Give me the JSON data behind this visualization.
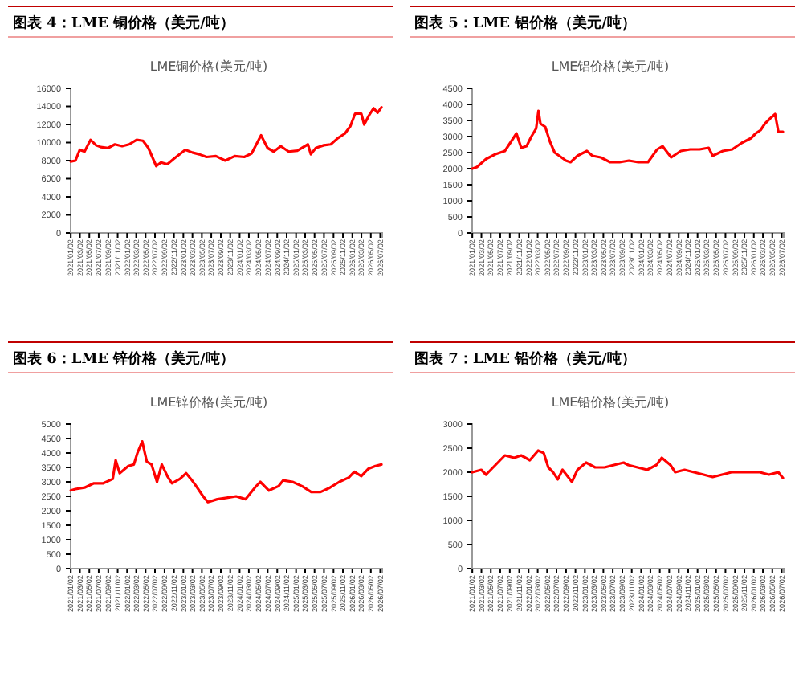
{
  "chart_data": [
    {
      "type": "line",
      "title": "图表 4：LME 铜价格（美元/吨）",
      "subtitle": "LME铜价格(美元/吨)",
      "ylim": [
        0,
        16000
      ],
      "yticks": [
        0,
        2000,
        4000,
        6000,
        8000,
        10000,
        12000,
        14000,
        16000
      ],
      "xlim": [
        "2021-01-01",
        "2026-07-15"
      ],
      "xticks": [
        {
          "value": "2021-01-02",
          "label": "2021/01/02"
        },
        {
          "value": "2021-03-02",
          "label": "2021/03/02"
        },
        {
          "value": "2021-05-02",
          "label": "2021/05/02"
        },
        {
          "value": "2021-07-02",
          "label": "2021/07/02"
        },
        {
          "value": "2021-09-02",
          "label": "2021/09/02"
        },
        {
          "value": "2021-11-02",
          "label": "2021/11/02"
        },
        {
          "value": "2022-01-02",
          "label": "2022/01/02"
        },
        {
          "value": "2022-03-02",
          "label": "2022/03/02"
        },
        {
          "value": "2022-05-02",
          "label": "2022/05/02"
        },
        {
          "value": "2022-07-02",
          "label": "2022/07/02"
        },
        {
          "value": "2022-09-02",
          "label": "2022/09/02"
        },
        {
          "value": "2022-11-02",
          "label": "2022/11/02"
        },
        {
          "value": "2023-01-02",
          "label": "2023/01/02"
        },
        {
          "value": "2023-03-02",
          "label": "2023/03/02"
        },
        {
          "value": "2023-05-02",
          "label": "2023/05/02"
        },
        {
          "value": "2023-07-02",
          "label": "2023/07/02"
        },
        {
          "value": "2023-09-02",
          "label": "2023/09/02"
        },
        {
          "value": "2023-11-02",
          "label": "2023/11/02"
        },
        {
          "value": "2024-01-02",
          "label": "2024/01/02"
        },
        {
          "value": "2024-03-02",
          "label": "2024/03/02"
        },
        {
          "value": "2024-05-02",
          "label": "2024/05/02"
        },
        {
          "value": "2024-07-02",
          "label": "2024/07/02"
        },
        {
          "value": "2024-09-02",
          "label": "2024/09/02"
        },
        {
          "value": "2024-11-02",
          "label": "2024/11/02"
        },
        {
          "value": "2025-01-02",
          "label": "2025/01/02"
        },
        {
          "value": "2025-03-02",
          "label": "2025/03/02"
        },
        {
          "value": "2025-05-02",
          "label": "2025/05/02"
        },
        {
          "value": "2025-07-02",
          "label": "2025/07/02"
        },
        {
          "value": "2025-09-02",
          "label": "2025/09/02"
        },
        {
          "value": "2025-11-02",
          "label": "2025/11/02"
        },
        {
          "value": "2026-01-02",
          "label": "2026/01/02"
        },
        {
          "value": "2026-03-02",
          "label": "2026/03/02"
        },
        {
          "value": "2026-05-02",
          "label": "2026/05/02"
        },
        {
          "value": "2026-07-02",
          "label": "2026/07/02"
        }
      ],
      "x": [
        "2021-01-02",
        "2021-02-01",
        "2021-03-01",
        "2021-04-01",
        "2021-05-10",
        "2021-06-15",
        "2021-07-15",
        "2021-09-01",
        "2021-10-15",
        "2021-12-01",
        "2022-01-15",
        "2022-03-05",
        "2022-04-15",
        "2022-05-20",
        "2022-07-10",
        "2022-08-10",
        "2022-09-20",
        "2022-11-01",
        "2023-01-15",
        "2023-03-01",
        "2023-04-15",
        "2023-06-01",
        "2023-08-01",
        "2023-10-01",
        "2023-12-01",
        "2024-02-01",
        "2024-03-20",
        "2024-05-20",
        "2024-07-01",
        "2024-08-10",
        "2024-09-25",
        "2024-11-15",
        "2025-01-10",
        "2025-03-20",
        "2025-04-08",
        "2025-05-10",
        "2025-07-01",
        "2025-08-15",
        "2025-10-01",
        "2025-11-15",
        "2025-12-20",
        "2026-01-20",
        "2026-03-01",
        "2026-03-20",
        "2026-04-20",
        "2026-05-20",
        "2026-06-15",
        "2026-07-10"
      ],
      "series": [
        {
          "color": "#ff0000",
          "values": [
            7900,
            8000,
            9200,
            9000,
            10300,
            9700,
            9500,
            9400,
            9800,
            9600,
            9800,
            10300,
            10200,
            9400,
            7400,
            7800,
            7600,
            8200,
            9200,
            8900,
            8700,
            8400,
            8500,
            8000,
            8500,
            8400,
            8800,
            10800,
            9400,
            9000,
            9600,
            9000,
            9100,
            9800,
            8700,
            9400,
            9700,
            9800,
            10500,
            11000,
            11800,
            13200,
            13200,
            12000,
            13000,
            13800,
            13300,
            13900
          ]
        }
      ]
    },
    {
      "type": "line",
      "title": "图表 5：LME 铝价格（美元/吨）",
      "subtitle": "LME铝价格(美元/吨)",
      "ylim": [
        0,
        4500
      ],
      "yticks": [
        0,
        500,
        1000,
        1500,
        2000,
        2500,
        3000,
        3500,
        4000,
        4500
      ],
      "xlim": [
        "2021-01-01",
        "2026-07-15"
      ],
      "xticks": [
        {
          "value": "2021-01-02",
          "label": "2021/01/02"
        },
        {
          "value": "2021-03-02",
          "label": "2021/03/02"
        },
        {
          "value": "2021-05-02",
          "label": "2021/05/02"
        },
        {
          "value": "2021-07-02",
          "label": "2021/07/02"
        },
        {
          "value": "2021-09-02",
          "label": "2021/09/02"
        },
        {
          "value": "2021-11-02",
          "label": "2021/11/02"
        },
        {
          "value": "2022-01-02",
          "label": "2022/01/02"
        },
        {
          "value": "2022-03-02",
          "label": "2022/03/02"
        },
        {
          "value": "2022-05-02",
          "label": "2022/05/02"
        },
        {
          "value": "2022-07-02",
          "label": "2022/07/02"
        },
        {
          "value": "2022-09-02",
          "label": "2022/09/02"
        },
        {
          "value": "2022-11-02",
          "label": "2022/11/02"
        },
        {
          "value": "2023-01-02",
          "label": "2023/01/02"
        },
        {
          "value": "2023-03-02",
          "label": "2023/03/02"
        },
        {
          "value": "2023-05-02",
          "label": "2023/05/02"
        },
        {
          "value": "2023-07-02",
          "label": "2023/07/02"
        },
        {
          "value": "2023-09-02",
          "label": "2023/09/02"
        },
        {
          "value": "2023-11-02",
          "label": "2023/11/02"
        },
        {
          "value": "2024-01-02",
          "label": "2024/01/02"
        },
        {
          "value": "2024-03-02",
          "label": "2024/03/02"
        },
        {
          "value": "2024-05-02",
          "label": "2024/05/02"
        },
        {
          "value": "2024-07-02",
          "label": "2024/07/02"
        },
        {
          "value": "2024-09-02",
          "label": "2024/09/02"
        },
        {
          "value": "2024-11-02",
          "label": "2024/11/02"
        },
        {
          "value": "2025-01-02",
          "label": "2025/01/02"
        },
        {
          "value": "2025-03-02",
          "label": "2025/03/02"
        },
        {
          "value": "2025-05-02",
          "label": "2025/05/02"
        },
        {
          "value": "2025-07-02",
          "label": "2025/07/02"
        },
        {
          "value": "2025-09-02",
          "label": "2025/09/02"
        },
        {
          "value": "2025-11-02",
          "label": "2025/11/02"
        },
        {
          "value": "2026-01-02",
          "label": "2026/01/02"
        },
        {
          "value": "2026-03-02",
          "label": "2026/03/02"
        },
        {
          "value": "2026-05-02",
          "label": "2026/05/02"
        },
        {
          "value": "2026-07-02",
          "label": "2026/07/02"
        }
      ],
      "x": [
        "2021-01-02",
        "2021-02-01",
        "2021-04-01",
        "2021-06-01",
        "2021-08-01",
        "2021-09-25",
        "2021-10-15",
        "2021-11-15",
        "2021-12-20",
        "2022-01-20",
        "2022-02-20",
        "2022-03-07",
        "2022-03-20",
        "2022-04-20",
        "2022-05-20",
        "2022-06-20",
        "2022-07-20",
        "2022-09-01",
        "2022-10-01",
        "2022-11-15",
        "2023-01-15",
        "2023-02-20",
        "2023-04-15",
        "2023-06-15",
        "2023-08-15",
        "2023-10-15",
        "2023-12-15",
        "2024-02-15",
        "2024-04-15",
        "2024-05-20",
        "2024-07-15",
        "2024-09-15",
        "2024-11-15",
        "2025-01-15",
        "2025-03-15",
        "2025-04-10",
        "2025-06-15",
        "2025-08-15",
        "2025-10-15",
        "2025-12-15",
        "2026-01-15",
        "2026-02-15",
        "2026-03-15",
        "2026-04-15",
        "2026-05-20",
        "2026-06-10",
        "2026-07-10"
      ],
      "series": [
        {
          "color": "#ff0000",
          "values": [
            2000,
            2050,
            2300,
            2450,
            2550,
            2950,
            3100,
            2650,
            2700,
            3000,
            3250,
            3800,
            3400,
            3300,
            2850,
            2500,
            2400,
            2250,
            2200,
            2400,
            2550,
            2400,
            2350,
            2200,
            2200,
            2250,
            2200,
            2200,
            2600,
            2700,
            2350,
            2550,
            2600,
            2600,
            2650,
            2400,
            2550,
            2600,
            2800,
            2950,
            3100,
            3200,
            3400,
            3550,
            3700,
            3150,
            3150
          ]
        }
      ]
    },
    {
      "type": "line",
      "title": "图表 6：LME 锌价格（美元/吨）",
      "subtitle": "LME锌价格(美元/吨)",
      "ylim": [
        0,
        5000
      ],
      "yticks": [
        0,
        500,
        1000,
        1500,
        2000,
        2500,
        3000,
        3500,
        4000,
        4500,
        5000
      ],
      "xlim": [
        "2021-01-01",
        "2026-07-15"
      ],
      "xticks": [
        {
          "value": "2021-01-02",
          "label": "2021/01/02"
        },
        {
          "value": "2021-03-02",
          "label": "2021/03/02"
        },
        {
          "value": "2021-05-02",
          "label": "2021/05/02"
        },
        {
          "value": "2021-07-02",
          "label": "2021/07/02"
        },
        {
          "value": "2021-09-02",
          "label": "2021/09/02"
        },
        {
          "value": "2021-11-02",
          "label": "2021/11/02"
        },
        {
          "value": "2022-01-02",
          "label": "2022/01/02"
        },
        {
          "value": "2022-03-02",
          "label": "2022/03/02"
        },
        {
          "value": "2022-05-02",
          "label": "2022/05/02"
        },
        {
          "value": "2022-07-02",
          "label": "2022/07/02"
        },
        {
          "value": "2022-09-02",
          "label": "2022/09/02"
        },
        {
          "value": "2022-11-02",
          "label": "2022/11/02"
        },
        {
          "value": "2023-01-02",
          "label": "2023/01/02"
        },
        {
          "value": "2023-03-02",
          "label": "2023/03/02"
        },
        {
          "value": "2023-05-02",
          "label": "2023/05/02"
        },
        {
          "value": "2023-07-02",
          "label": "2023/07/02"
        },
        {
          "value": "2023-09-02",
          "label": "2023/09/02"
        },
        {
          "value": "2023-11-02",
          "label": "2023/11/02"
        },
        {
          "value": "2024-01-02",
          "label": "2024/01/02"
        },
        {
          "value": "2024-03-02",
          "label": "2024/03/02"
        },
        {
          "value": "2024-05-02",
          "label": "2024/05/02"
        },
        {
          "value": "2024-07-02",
          "label": "2024/07/02"
        },
        {
          "value": "2024-09-02",
          "label": "2024/09/02"
        },
        {
          "value": "2024-11-02",
          "label": "2024/11/02"
        },
        {
          "value": "2025-01-02",
          "label": "2025/01/02"
        },
        {
          "value": "2025-03-02",
          "label": "2025/03/02"
        },
        {
          "value": "2025-05-02",
          "label": "2025/05/02"
        },
        {
          "value": "2025-07-02",
          "label": "2025/07/02"
        },
        {
          "value": "2025-09-02",
          "label": "2025/09/02"
        },
        {
          "value": "2025-11-02",
          "label": "2025/11/02"
        },
        {
          "value": "2026-01-02",
          "label": "2026/01/02"
        },
        {
          "value": "2026-03-02",
          "label": "2026/03/02"
        },
        {
          "value": "2026-05-02",
          "label": "2026/05/02"
        },
        {
          "value": "2026-07-02",
          "label": "2026/07/02"
        }
      ],
      "x": [
        "2021-01-02",
        "2021-02-01",
        "2021-04-01",
        "2021-06-01",
        "2021-08-01",
        "2021-10-01",
        "2021-10-20",
        "2021-11-15",
        "2022-01-10",
        "2022-02-15",
        "2022-03-10",
        "2022-04-10",
        "2022-05-10",
        "2022-06-10",
        "2022-07-15",
        "2022-08-15",
        "2022-09-20",
        "2022-10-20",
        "2022-12-10",
        "2023-01-20",
        "2023-02-20",
        "2023-03-20",
        "2023-05-10",
        "2023-06-10",
        "2023-08-10",
        "2023-10-10",
        "2023-12-10",
        "2024-02-10",
        "2024-04-10",
        "2024-05-15",
        "2024-07-10",
        "2024-09-10",
        "2024-10-10",
        "2024-12-10",
        "2025-02-10",
        "2025-04-10",
        "2025-06-10",
        "2025-08-10",
        "2025-10-10",
        "2025-12-10",
        "2026-01-15",
        "2026-03-01",
        "2026-04-15",
        "2026-06-01",
        "2026-07-10"
      ],
      "series": [
        {
          "color": "#ff0000",
          "values": [
            2700,
            2750,
            2800,
            2950,
            2950,
            3100,
            3750,
            3300,
            3550,
            3600,
            4000,
            4400,
            3700,
            3600,
            3000,
            3600,
            3200,
            2950,
            3100,
            3300,
            3100,
            2900,
            2500,
            2300,
            2400,
            2450,
            2500,
            2400,
            2800,
            3000,
            2700,
            2850,
            3050,
            3000,
            2850,
            2650,
            2650,
            2800,
            3000,
            3150,
            3350,
            3200,
            3450,
            3550,
            3600
          ]
        }
      ]
    },
    {
      "type": "line",
      "title": "图表 7：LME 铅价格（美元/吨）",
      "subtitle": "LME铅价格(美元/吨)",
      "ylim": [
        0,
        3000
      ],
      "yticks": [
        0,
        500,
        1000,
        1500,
        2000,
        2500,
        3000
      ],
      "xlim": [
        "2021-01-01",
        "2026-07-15"
      ],
      "xticks": [
        {
          "value": "2021-01-02",
          "label": "2021/01/02"
        },
        {
          "value": "2021-03-02",
          "label": "2021/03/02"
        },
        {
          "value": "2021-05-02",
          "label": "2021/05/02"
        },
        {
          "value": "2021-07-02",
          "label": "2021/07/02"
        },
        {
          "value": "2021-09-02",
          "label": "2021/09/02"
        },
        {
          "value": "2021-11-02",
          "label": "2021/11/02"
        },
        {
          "value": "2022-01-02",
          "label": "2022/01/02"
        },
        {
          "value": "2022-03-02",
          "label": "2022/03/02"
        },
        {
          "value": "2022-05-02",
          "label": "2022/05/02"
        },
        {
          "value": "2022-07-02",
          "label": "2022/07/02"
        },
        {
          "value": "2022-09-02",
          "label": "2022/09/02"
        },
        {
          "value": "2022-11-02",
          "label": "2022/11/02"
        },
        {
          "value": "2023-01-02",
          "label": "2023/01/02"
        },
        {
          "value": "2023-03-02",
          "label": "2023/03/02"
        },
        {
          "value": "2023-05-02",
          "label": "2023/05/02"
        },
        {
          "value": "2023-07-02",
          "label": "2023/07/02"
        },
        {
          "value": "2023-09-02",
          "label": "2023/09/02"
        },
        {
          "value": "2023-11-02",
          "label": "2023/11/02"
        },
        {
          "value": "2024-01-02",
          "label": "2024/01/02"
        },
        {
          "value": "2024-03-02",
          "label": "2024/03/02"
        },
        {
          "value": "2024-05-02",
          "label": "2024/05/02"
        },
        {
          "value": "2024-07-02",
          "label": "2024/07/02"
        },
        {
          "value": "2024-09-02",
          "label": "2024/09/02"
        },
        {
          "value": "2024-11-02",
          "label": "2024/11/02"
        },
        {
          "value": "2025-01-02",
          "label": "2025/01/02"
        },
        {
          "value": "2025-03-02",
          "label": "2025/03/02"
        },
        {
          "value": "2025-05-02",
          "label": "2025/05/02"
        },
        {
          "value": "2025-07-02",
          "label": "2025/07/02"
        },
        {
          "value": "2025-09-02",
          "label": "2025/09/02"
        },
        {
          "value": "2025-11-02",
          "label": "2025/11/02"
        },
        {
          "value": "2026-01-02",
          "label": "2026/01/02"
        },
        {
          "value": "2026-03-02",
          "label": "2026/03/02"
        },
        {
          "value": "2026-05-02",
          "label": "2026/05/02"
        },
        {
          "value": "2026-07-02",
          "label": "2026/07/02"
        }
      ],
      "x": [
        "2021-01-02",
        "2021-03-01",
        "2021-04-01",
        "2021-06-01",
        "2021-08-01",
        "2021-10-01",
        "2021-11-15",
        "2022-01-10",
        "2022-03-05",
        "2022-04-10",
        "2022-05-10",
        "2022-06-10",
        "2022-07-10",
        "2022-08-10",
        "2022-10-10",
        "2022-11-15",
        "2023-01-10",
        "2023-03-10",
        "2023-05-10",
        "2023-07-10",
        "2023-09-10",
        "2023-10-10",
        "2023-12-10",
        "2024-02-10",
        "2024-04-10",
        "2024-05-15",
        "2024-07-10",
        "2024-08-10",
        "2024-10-10",
        "2024-12-10",
        "2025-02-10",
        "2025-04-10",
        "2025-06-10",
        "2025-08-10",
        "2025-10-10",
        "2025-12-10",
        "2026-02-10",
        "2026-04-10",
        "2026-06-10",
        "2026-07-10"
      ],
      "series": [
        {
          "color": "#ff0000",
          "values": [
            2000,
            2050,
            1950,
            2150,
            2350,
            2300,
            2350,
            2250,
            2450,
            2400,
            2100,
            2000,
            1850,
            2050,
            1800,
            2050,
            2200,
            2100,
            2100,
            2150,
            2200,
            2150,
            2100,
            2050,
            2150,
            2300,
            2150,
            2000,
            2050,
            2000,
            1950,
            1900,
            1950,
            2000,
            2000,
            2000,
            2000,
            1950,
            2000,
            1880
          ]
        }
      ]
    }
  ]
}
